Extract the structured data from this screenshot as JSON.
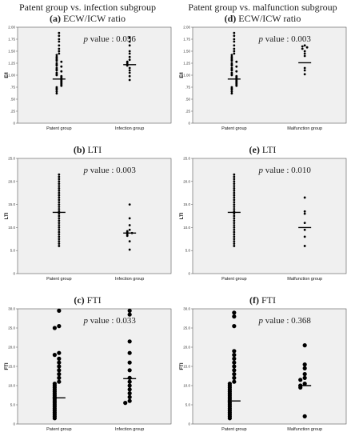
{
  "header": {
    "left": "Patent group vs. infection subgroup",
    "right": "Patent group vs. malfunction subgroup"
  },
  "colors": {
    "plot_bg": "#f0f0f0",
    "dot": "#000000"
  },
  "chart_data": [
    {
      "id": "a",
      "label": "(a)",
      "title": "ECW/ICW ratio",
      "type": "scatter",
      "ylabel": "E/I",
      "ylim": [
        0,
        2.0
      ],
      "yticks": [
        "0",
        ".25",
        ".50",
        ".75",
        "1.00",
        "1.25",
        "1.50",
        "1.75",
        "2.00"
      ],
      "categories": [
        "Patent group",
        "Infection group"
      ],
      "p_label": "p",
      "p_value": "value : 0.056",
      "series": [
        {
          "category": "Patent group",
          "median": 0.92,
          "values": [
            1.88,
            1.82,
            1.75,
            1.7,
            1.62,
            1.55,
            1.5,
            1.45,
            1.42,
            1.38,
            1.35,
            1.32,
            1.3,
            1.28,
            1.25,
            1.22,
            1.2,
            1.18,
            1.15,
            1.12,
            1.1,
            1.08,
            1.05,
            1.02,
            1.0,
            0.98,
            0.96,
            0.94,
            0.92,
            0.9,
            0.88,
            0.86,
            0.84,
            0.82,
            0.8,
            0.78,
            0.75,
            0.72,
            0.7,
            0.66,
            0.62
          ]
        },
        {
          "category": "Infection group",
          "median": 1.22,
          "values": [
            1.78,
            1.7,
            1.62,
            1.5,
            1.45,
            1.38,
            1.32,
            1.28,
            1.25,
            1.22,
            1.2,
            1.15,
            1.1,
            1.05,
            0.98,
            0.9
          ]
        }
      ]
    },
    {
      "id": "d",
      "label": "(d)",
      "title": "ECW/ICW ratio",
      "type": "scatter",
      "ylabel": "E/I",
      "ylim": [
        0,
        2.0
      ],
      "yticks": [
        "0",
        ".25",
        ".50",
        ".75",
        "1.00",
        "1.25",
        "1.50",
        "1.75",
        "2.00"
      ],
      "categories": [
        "Patent group",
        "Malfunction group"
      ],
      "p_label": "p",
      "p_value": "value : 0.003",
      "series": [
        {
          "category": "Patent group",
          "median": 0.92,
          "values": [
            1.88,
            1.82,
            1.75,
            1.7,
            1.62,
            1.55,
            1.5,
            1.45,
            1.42,
            1.38,
            1.35,
            1.32,
            1.3,
            1.28,
            1.25,
            1.22,
            1.2,
            1.18,
            1.15,
            1.12,
            1.1,
            1.08,
            1.05,
            1.02,
            1.0,
            0.98,
            0.96,
            0.94,
            0.92,
            0.9,
            0.88,
            0.86,
            0.84,
            0.82,
            0.8,
            0.78,
            0.75,
            0.72,
            0.7,
            0.66,
            0.62
          ]
        },
        {
          "category": "Malfunction group",
          "median": 1.26,
          "values": [
            1.62,
            1.6,
            1.58,
            1.55,
            1.5,
            1.45,
            1.4,
            1.15,
            1.1,
            1.02
          ]
        }
      ]
    },
    {
      "id": "b",
      "label": "(b)",
      "title": "LTI",
      "type": "scatter",
      "ylabel": "LTI",
      "ylim": [
        0,
        25
      ],
      "yticks": [
        "0",
        "5.0",
        "10.0",
        "15.0",
        "20.0",
        "25.0"
      ],
      "categories": [
        "Patent group",
        "Infection group"
      ],
      "p_label": "p",
      "p_value": "value : 0.003",
      "series": [
        {
          "category": "Patent group",
          "median": 13.3,
          "values": [
            21.5,
            21.0,
            20.5,
            20.0,
            19.5,
            19.0,
            18.5,
            18.0,
            17.5,
            17.0,
            16.5,
            16.0,
            15.5,
            15.0,
            14.5,
            14.0,
            13.5,
            13.0,
            12.5,
            12.0,
            11.5,
            11.0,
            10.5,
            10.0,
            9.5,
            9.0,
            8.5,
            8.0,
            7.5,
            7.0,
            6.5,
            6.0
          ]
        },
        {
          "category": "Infection group",
          "median": 8.8,
          "values": [
            15.0,
            12.0,
            10.5,
            9.5,
            9.2,
            9.0,
            8.8,
            8.5,
            8.2,
            7.0,
            5.2
          ]
        }
      ]
    },
    {
      "id": "e",
      "label": "(e)",
      "title": "LTI",
      "type": "scatter",
      "ylabel": "LTI",
      "ylim": [
        0,
        25
      ],
      "yticks": [
        "0",
        "5.0",
        "10.0",
        "15.0",
        "20.0",
        "25.0"
      ],
      "categories": [
        "Patent group",
        "Malfunction group"
      ],
      "p_label": "p",
      "p_value": "value : 0.010",
      "series": [
        {
          "category": "Patent group",
          "median": 13.3,
          "values": [
            21.5,
            21.0,
            20.5,
            20.0,
            19.5,
            19.0,
            18.5,
            18.0,
            17.5,
            17.0,
            16.5,
            16.0,
            15.5,
            15.0,
            14.5,
            14.0,
            13.5,
            13.0,
            12.5,
            12.0,
            11.5,
            11.0,
            10.5,
            10.0,
            9.5,
            9.0,
            8.5,
            8.0,
            7.5,
            7.0,
            6.5,
            6.0
          ]
        },
        {
          "category": "Malfunction group",
          "median": 10.0,
          "values": [
            16.5,
            13.5,
            13.0,
            11.0,
            9.5,
            8.0,
            6.0
          ]
        }
      ]
    },
    {
      "id": "c",
      "label": "(c)",
      "title": "FTI",
      "type": "scatter",
      "ylabel": "FTI",
      "ylim": [
        0,
        30
      ],
      "yticks": [
        "0",
        "5.0",
        "10.0",
        "15.0",
        "20.0",
        "25.0",
        "30.0"
      ],
      "categories": [
        "Patent group",
        "Infection group"
      ],
      "p_label": "p",
      "p_value": "value : 0.033",
      "series": [
        {
          "category": "Patent group",
          "median": 6.8,
          "values": [
            29.5,
            25.5,
            25.0,
            18.5,
            18.0,
            17.0,
            16.0,
            15.0,
            14.0,
            13.0,
            12.0,
            11.0,
            10.5,
            10.0,
            9.5,
            9.0,
            8.5,
            8.0,
            7.5,
            7.0,
            6.5,
            6.0,
            5.5,
            5.0,
            4.5,
            4.0,
            3.5,
            3.0,
            2.5,
            2.0,
            1.5
          ]
        },
        {
          "category": "Infection group",
          "median": 11.8,
          "values": [
            29.5,
            28.5,
            21.5,
            18.5,
            16.0,
            14.0,
            12.0,
            11.0,
            10.0,
            9.0,
            8.0,
            7.0,
            6.0,
            5.5
          ]
        }
      ]
    },
    {
      "id": "f",
      "label": "(f)",
      "title": "FTI",
      "type": "scatter",
      "ylabel": "FTI",
      "ylim": [
        0,
        30
      ],
      "yticks": [
        "0",
        "5.0",
        "10.0",
        "15.0",
        "20.0",
        "25.0",
        "30.0"
      ],
      "categories": [
        "Patent group",
        "Malfunction group"
      ],
      "p_label": "p",
      "p_value": "value : 0.368",
      "series": [
        {
          "category": "Patent group",
          "median": 6.0,
          "values": [
            29.0,
            28.0,
            25.5,
            19.0,
            18.0,
            17.0,
            16.0,
            15.0,
            14.0,
            13.0,
            12.0,
            11.0,
            10.5,
            10.0,
            9.5,
            9.0,
            8.5,
            8.0,
            7.5,
            7.0,
            6.5,
            6.0,
            5.5,
            5.0,
            4.5,
            4.0,
            3.5,
            3.0,
            2.5,
            2.0,
            1.5
          ]
        },
        {
          "category": "Malfunction group",
          "median": 10.0,
          "values": [
            20.5,
            15.5,
            14.5,
            13.0,
            12.0,
            11.5,
            10.5,
            10.0,
            9.5,
            2.0
          ]
        }
      ]
    }
  ]
}
